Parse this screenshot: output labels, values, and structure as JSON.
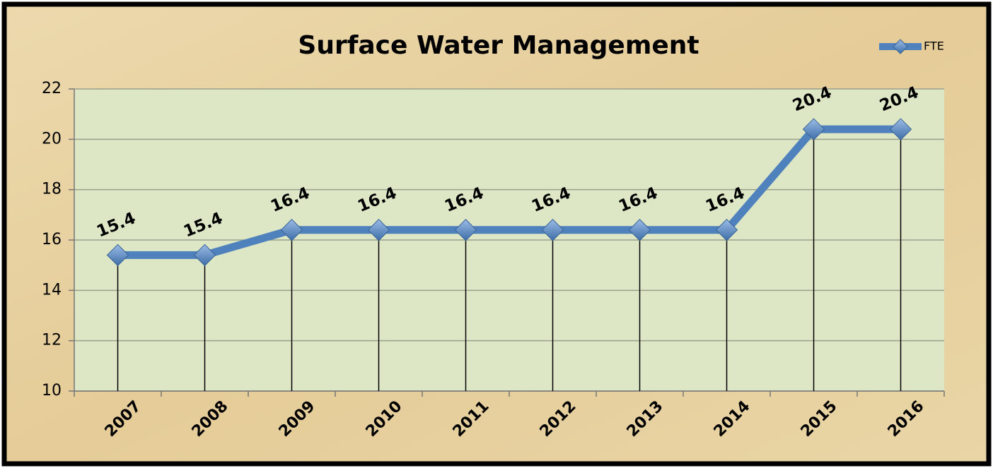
{
  "chart_data": {
    "type": "line",
    "title": "Surface Water Management",
    "categories": [
      "2007",
      "2008",
      "2009",
      "2010",
      "2011",
      "2012",
      "2013",
      "2014",
      "2015",
      "2016"
    ],
    "series": [
      {
        "name": "FTE",
        "color": "#4f81bd",
        "values": [
          15.4,
          15.4,
          16.4,
          16.4,
          16.4,
          16.4,
          16.4,
          16.4,
          20.4,
          20.4
        ]
      }
    ],
    "ylim": [
      10,
      22
    ],
    "yticks": [
      10,
      12,
      14,
      16,
      18,
      20,
      22
    ],
    "grid": true,
    "drop_lines": true,
    "data_labels": true,
    "legend": "top-right"
  }
}
